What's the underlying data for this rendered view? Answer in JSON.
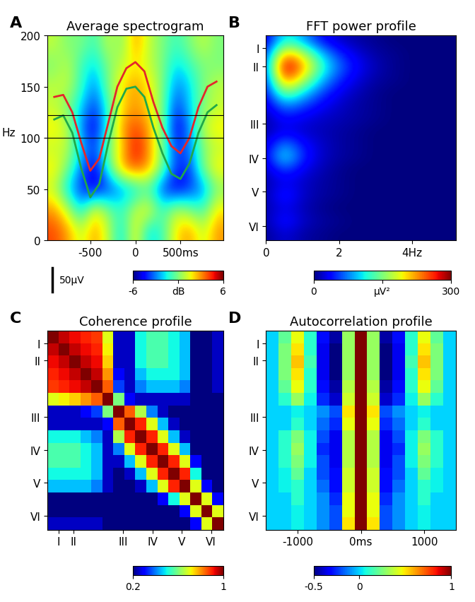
{
  "chart_data": [
    {
      "type": "heatmap",
      "panel": "A",
      "title": "Average spectrogram",
      "y_label": "Hz",
      "x": [
        -900,
        -750,
        -600,
        -450,
        -300,
        -150,
        0,
        150,
        300,
        450,
        600,
        750,
        900
      ],
      "y": [
        10,
        30,
        50,
        70,
        90,
        110,
        130,
        150,
        170,
        190
      ],
      "cells": [
        [
          4,
          3,
          1,
          3,
          1,
          -2,
          2,
          -2,
          -1,
          2,
          3,
          1,
          3
        ],
        [
          3,
          1,
          -2,
          2,
          0,
          -1,
          1,
          2,
          -1,
          1,
          0,
          -1,
          2
        ],
        [
          1,
          -2,
          -4,
          -5,
          -4,
          -3,
          -2,
          -1,
          -4,
          -5,
          -4,
          -3,
          0
        ],
        [
          2,
          0,
          -3,
          -5,
          -1,
          3,
          4,
          3,
          0,
          -4,
          -4,
          0,
          2
        ],
        [
          1,
          1,
          -2,
          -4,
          0,
          2,
          5,
          3,
          0,
          -4,
          -3,
          0,
          1
        ],
        [
          2,
          1,
          -3,
          -5,
          -1,
          3,
          4,
          3,
          0,
          -5,
          -3,
          1,
          2
        ],
        [
          1,
          0,
          -2,
          -4,
          -1,
          2,
          3,
          2,
          0,
          -4,
          -2,
          0,
          1
        ],
        [
          1,
          1,
          -1,
          -3,
          0,
          2,
          3,
          2,
          0,
          -3,
          -2,
          0,
          1
        ],
        [
          0,
          1,
          -1,
          -2,
          0,
          1,
          2,
          1,
          0,
          -2,
          -1,
          0,
          0
        ],
        [
          1,
          0,
          0,
          -1,
          1,
          0,
          3,
          1,
          0,
          -1,
          0,
          1,
          0
        ]
      ],
      "xlim": [
        -975,
        975
      ],
      "ylim": [
        0,
        200
      ],
      "xticks": [
        -500,
        0,
        {
          "value": 500,
          "label": "500ms"
        }
      ],
      "yticks": [
        0,
        50,
        100,
        150,
        200
      ],
      "colorbar": {
        "range": [
          -6,
          6
        ],
        "ticks": [
          -6,
          {
            "value": 0,
            "label": "dB"
          },
          6
        ]
      },
      "trace_x": [
        -900,
        -800,
        -700,
        -600,
        -500,
        -400,
        -300,
        -200,
        -100,
        0,
        100,
        200,
        300,
        400,
        500,
        600,
        700,
        800,
        900
      ],
      "series": [
        {
          "color": "#e3262b",
          "values": [
            140,
            142,
            125,
            95,
            68,
            80,
            115,
            150,
            168,
            174,
            165,
            135,
            110,
            92,
            85,
            100,
            130,
            150,
            155
          ]
        },
        {
          "color": "#1fa84a",
          "values": [
            118,
            122,
            105,
            70,
            42,
            55,
            95,
            130,
            148,
            150,
            140,
            110,
            85,
            65,
            60,
            75,
            105,
            125,
            132
          ]
        }
      ],
      "reference_lines": [
        100,
        122
      ],
      "scale_bar": "50µV"
    },
    {
      "type": "heatmap",
      "panel": "B",
      "title": "FFT power profile",
      "x": [
        0,
        0.5,
        1,
        1.5,
        2,
        2.5,
        3,
        3.5,
        4,
        4.5,
        5
      ],
      "y": [
        0.5,
        1.5,
        2.5,
        3.5,
        4.5,
        5.5,
        6.5,
        7.5,
        8.5,
        9.5,
        10.5,
        11.5,
        12.5,
        13.5,
        14.5,
        15.5
      ],
      "cells": [
        [
          20,
          120,
          90,
          40,
          20,
          10,
          5,
          0,
          0,
          0,
          0
        ],
        [
          40,
          230,
          180,
          100,
          50,
          25,
          10,
          5,
          0,
          0,
          0
        ],
        [
          50,
          300,
          230,
          130,
          70,
          35,
          15,
          5,
          0,
          0,
          0
        ],
        [
          40,
          250,
          180,
          100,
          50,
          25,
          10,
          5,
          0,
          0,
          0
        ],
        [
          30,
          160,
          110,
          60,
          30,
          15,
          5,
          0,
          0,
          0,
          0
        ],
        [
          20,
          80,
          60,
          35,
          20,
          10,
          5,
          0,
          0,
          0,
          0
        ],
        [
          10,
          40,
          30,
          20,
          15,
          10,
          5,
          0,
          0,
          0,
          0
        ],
        [
          10,
          30,
          20,
          15,
          10,
          5,
          0,
          0,
          0,
          0,
          0
        ],
        [
          20,
          80,
          40,
          20,
          10,
          5,
          0,
          0,
          0,
          0,
          0
        ],
        [
          25,
          120,
          50,
          20,
          10,
          5,
          0,
          0,
          0,
          0,
          0
        ],
        [
          15,
          60,
          30,
          15,
          5,
          0,
          0,
          0,
          0,
          0,
          0
        ],
        [
          10,
          30,
          20,
          10,
          5,
          0,
          0,
          0,
          0,
          0,
          0
        ],
        [
          10,
          50,
          20,
          10,
          5,
          0,
          0,
          0,
          0,
          0,
          0
        ],
        [
          10,
          30,
          15,
          5,
          0,
          0,
          0,
          0,
          0,
          0,
          0
        ],
        [
          10,
          45,
          20,
          10,
          5,
          0,
          0,
          0,
          0,
          0,
          0
        ],
        [
          5,
          25,
          10,
          5,
          0,
          0,
          0,
          0,
          0,
          0,
          0
        ]
      ],
      "xlim": [
        0,
        5.2
      ],
      "ylim": [
        16,
        0
      ],
      "xticks": [
        0,
        2,
        {
          "value": 4,
          "label": "4Hz"
        }
      ],
      "yticks": [
        {
          "value": 1,
          "label": "I"
        },
        {
          "value": 2.4,
          "label": "II"
        },
        {
          "value": 6.9,
          "label": "III"
        },
        {
          "value": 9.6,
          "label": "IV"
        },
        {
          "value": 12.2,
          "label": "V"
        },
        {
          "value": 14.9,
          "label": "VI"
        }
      ],
      "colorbar": {
        "range": [
          0,
          300
        ],
        "ticks": [
          0,
          {
            "value": 150,
            "label": "µV²"
          },
          300
        ]
      }
    },
    {
      "type": "heatmap",
      "panel": "C",
      "title": "Coherence profile",
      "x": [
        0.5,
        1.5,
        2.5,
        3.5,
        4.5,
        5.5,
        6.5,
        7.5,
        8.5,
        9.5,
        10.5,
        11.5,
        12.5,
        13.5,
        14.5,
        15.5
      ],
      "y": [
        0.5,
        1.5,
        2.5,
        3.5,
        4.5,
        5.5,
        6.5,
        7.5,
        8.5,
        9.5,
        10.5,
        11.5,
        12.5,
        13.5,
        14.5,
        15.5
      ],
      "cells": [
        [
          1,
          0.95,
          0.92,
          0.9,
          0.88,
          0.7,
          0.25,
          0.25,
          0.5,
          0.55,
          0.55,
          0.5,
          0.45,
          0.2,
          0.2,
          0.25
        ],
        [
          0.95,
          1,
          0.95,
          0.92,
          0.9,
          0.72,
          0.25,
          0.25,
          0.5,
          0.55,
          0.55,
          0.5,
          0.45,
          0.2,
          0.2,
          0.25
        ],
        [
          0.92,
          0.95,
          1,
          0.95,
          0.92,
          0.75,
          0.25,
          0.25,
          0.5,
          0.55,
          0.55,
          0.5,
          0.45,
          0.2,
          0.2,
          0.25
        ],
        [
          0.9,
          0.92,
          0.95,
          1,
          0.95,
          0.8,
          0.3,
          0.25,
          0.45,
          0.5,
          0.5,
          0.5,
          0.45,
          0.2,
          0.2,
          0.25
        ],
        [
          0.88,
          0.9,
          0.92,
          0.95,
          1,
          0.85,
          0.35,
          0.25,
          0.4,
          0.45,
          0.45,
          0.45,
          0.4,
          0.2,
          0.2,
          0.25
        ],
        [
          0.7,
          0.72,
          0.75,
          0.8,
          0.85,
          1,
          0.6,
          0.3,
          0.25,
          0.25,
          0.25,
          0.25,
          0.25,
          0.2,
          0.2,
          0.2
        ],
        [
          0.25,
          0.25,
          0.25,
          0.3,
          0.35,
          0.6,
          1,
          0.85,
          0.65,
          0.4,
          0.25,
          0.2,
          0.2,
          0.2,
          0.2,
          0.2
        ],
        [
          0.25,
          0.25,
          0.25,
          0.25,
          0.25,
          0.3,
          0.85,
          1,
          0.9,
          0.7,
          0.45,
          0.25,
          0.2,
          0.2,
          0.2,
          0.2
        ],
        [
          0.5,
          0.5,
          0.5,
          0.45,
          0.4,
          0.25,
          0.65,
          0.9,
          1,
          0.9,
          0.7,
          0.45,
          0.25,
          0.2,
          0.2,
          0.2
        ],
        [
          0.55,
          0.55,
          0.55,
          0.5,
          0.45,
          0.25,
          0.4,
          0.7,
          0.9,
          1,
          0.9,
          0.7,
          0.45,
          0.2,
          0.2,
          0.2
        ],
        [
          0.55,
          0.55,
          0.55,
          0.5,
          0.45,
          0.25,
          0.25,
          0.45,
          0.7,
          0.9,
          1,
          0.9,
          0.7,
          0.3,
          0.2,
          0.2
        ],
        [
          0.5,
          0.5,
          0.5,
          0.5,
          0.45,
          0.25,
          0.2,
          0.25,
          0.45,
          0.7,
          0.9,
          1,
          0.9,
          0.5,
          0.2,
          0.2
        ],
        [
          0.45,
          0.45,
          0.45,
          0.45,
          0.4,
          0.25,
          0.2,
          0.2,
          0.25,
          0.45,
          0.7,
          0.9,
          1,
          0.7,
          0.3,
          0.2
        ],
        [
          0.2,
          0.2,
          0.2,
          0.2,
          0.2,
          0.2,
          0.2,
          0.2,
          0.2,
          0.2,
          0.3,
          0.5,
          0.7,
          1,
          0.7,
          0.3
        ],
        [
          0.2,
          0.2,
          0.2,
          0.2,
          0.2,
          0.2,
          0.2,
          0.2,
          0.2,
          0.2,
          0.2,
          0.2,
          0.3,
          0.7,
          1,
          0.7
        ],
        [
          0.25,
          0.25,
          0.25,
          0.25,
          0.25,
          0.2,
          0.2,
          0.2,
          0.2,
          0.2,
          0.2,
          0.2,
          0.2,
          0.3,
          0.7,
          1
        ]
      ],
      "xlim": [
        0,
        16
      ],
      "ylim": [
        16,
        0
      ],
      "xticks": [
        {
          "value": 1,
          "label": "I"
        },
        {
          "value": 2.4,
          "label": "II"
        },
        {
          "value": 6.9,
          "label": "III"
        },
        {
          "value": 9.6,
          "label": "IV"
        },
        {
          "value": 12.2,
          "label": "V"
        },
        {
          "value": 14.9,
          "label": "VI"
        }
      ],
      "yticks": [
        {
          "value": 1,
          "label": "I"
        },
        {
          "value": 2.4,
          "label": "II"
        },
        {
          "value": 6.9,
          "label": "III"
        },
        {
          "value": 9.6,
          "label": "IV"
        },
        {
          "value": 12.2,
          "label": "V"
        },
        {
          "value": 14.9,
          "label": "VI"
        }
      ],
      "colorbar": {
        "range": [
          0.2,
          1
        ],
        "ticks": [
          0.2,
          1
        ]
      }
    },
    {
      "type": "heatmap",
      "panel": "D",
      "title": "Autocorrelation profile",
      "x": [
        -1400,
        -1200,
        -1000,
        -800,
        -600,
        -400,
        -200,
        0,
        200,
        400,
        600,
        800,
        1000,
        1200,
        1400
      ],
      "y": [
        0.5,
        1.5,
        2.5,
        3.5,
        4.5,
        5.5,
        6.5,
        7.5,
        8.5,
        9.5,
        10.5,
        11.5,
        12.5,
        13.5,
        14.5,
        15.5
      ],
      "cells": [
        [
          0,
          0.2,
          0.45,
          0.1,
          -0.3,
          -0.45,
          0.3,
          1,
          0.3,
          -0.45,
          -0.3,
          0.1,
          0.45,
          0.2,
          0
        ],
        [
          0,
          0.25,
          0.5,
          0.1,
          -0.35,
          -0.5,
          0.3,
          1,
          0.3,
          -0.5,
          -0.35,
          0.1,
          0.5,
          0.25,
          0
        ],
        [
          0,
          0.25,
          0.55,
          0.15,
          -0.35,
          -0.5,
          0.3,
          1,
          0.3,
          -0.5,
          -0.35,
          0.15,
          0.55,
          0.25,
          0
        ],
        [
          0,
          0.25,
          0.5,
          0.1,
          -0.35,
          -0.5,
          0.3,
          1,
          0.3,
          -0.5,
          -0.35,
          0.1,
          0.5,
          0.25,
          0
        ],
        [
          0,
          0.2,
          0.45,
          0.1,
          -0.3,
          -0.45,
          0.35,
          1,
          0.35,
          -0.45,
          -0.3,
          0.1,
          0.45,
          0.2,
          0
        ],
        [
          0,
          0.1,
          0.3,
          0.05,
          -0.25,
          -0.4,
          0.4,
          1,
          0.4,
          -0.4,
          -0.25,
          0.05,
          0.3,
          0.1,
          0
        ],
        [
          0,
          0,
          0.05,
          0,
          -0.1,
          -0.2,
          0.5,
          1,
          0.5,
          -0.2,
          -0.1,
          0,
          0.05,
          0,
          0
        ],
        [
          0,
          0,
          0.1,
          0,
          -0.15,
          -0.25,
          0.45,
          1,
          0.45,
          -0.25,
          -0.15,
          0,
          0.1,
          0,
          0
        ],
        [
          0,
          0.1,
          0.25,
          0.05,
          -0.2,
          -0.35,
          0.35,
          1,
          0.35,
          -0.35,
          -0.2,
          0.05,
          0.25,
          0.1,
          0
        ],
        [
          0,
          0.1,
          0.3,
          0.05,
          -0.25,
          -0.35,
          0.35,
          1,
          0.35,
          -0.35,
          -0.25,
          0.05,
          0.3,
          0.1,
          0
        ],
        [
          0,
          0.1,
          0.25,
          0.05,
          -0.2,
          -0.35,
          0.35,
          1,
          0.35,
          -0.35,
          -0.2,
          0.05,
          0.25,
          0.1,
          0
        ],
        [
          0,
          0.05,
          0.2,
          0,
          -0.2,
          -0.3,
          0.4,
          1,
          0.4,
          -0.3,
          -0.2,
          0,
          0.2,
          0.05,
          0
        ],
        [
          0,
          0.05,
          0.1,
          0,
          -0.15,
          -0.3,
          0.4,
          1,
          0.4,
          -0.3,
          -0.15,
          0,
          0.1,
          0.05,
          0
        ],
        [
          0,
          0,
          0.1,
          0,
          -0.1,
          -0.25,
          0.45,
          1,
          0.45,
          -0.25,
          -0.1,
          0,
          0.1,
          0,
          0
        ],
        [
          0,
          0,
          0.05,
          0,
          -0.1,
          -0.2,
          0.45,
          1,
          0.45,
          -0.2,
          -0.1,
          0,
          0.05,
          0,
          0
        ],
        [
          0,
          0,
          0.05,
          0,
          -0.1,
          -0.2,
          0.5,
          1,
          0.5,
          -0.2,
          -0.1,
          0,
          0.05,
          0,
          0
        ]
      ],
      "xlim": [
        -1500,
        1500
      ],
      "ylim": [
        16,
        0
      ],
      "xticks": [
        -1000,
        {
          "value": 0,
          "label": "0ms"
        },
        1000
      ],
      "yticks": [
        {
          "value": 1,
          "label": "I"
        },
        {
          "value": 2.4,
          "label": "II"
        },
        {
          "value": 6.9,
          "label": "III"
        },
        {
          "value": 9.6,
          "label": "IV"
        },
        {
          "value": 12.2,
          "label": "V"
        },
        {
          "value": 14.9,
          "label": "VI"
        }
      ],
      "colorbar": {
        "range": [
          -0.5,
          1
        ],
        "ticks": [
          -0.5,
          0,
          1
        ]
      }
    }
  ]
}
